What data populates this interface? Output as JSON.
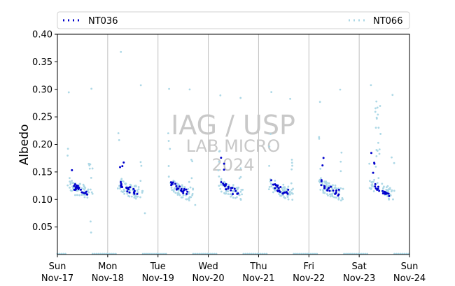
{
  "chart_data": {
    "type": "scatter",
    "ylabel": "Albedo",
    "ylim": [
      0.0,
      0.4
    ],
    "yticks": [
      0.05,
      0.1,
      0.15,
      0.2,
      0.25,
      0.3,
      0.35,
      0.4
    ],
    "ytick_labels": [
      "0.05",
      "0.10",
      "0.15",
      "0.20",
      "0.25",
      "0.30",
      "0.35",
      "0.40"
    ],
    "xlim": [
      0,
      7
    ],
    "xticks": [
      {
        "x": 0,
        "day": "Sun",
        "date": "Nov-17"
      },
      {
        "x": 1,
        "day": "Mon",
        "date": "Nov-18"
      },
      {
        "x": 2,
        "day": "Tue",
        "date": "Nov-19"
      },
      {
        "x": 3,
        "day": "Wed",
        "date": "Nov-20"
      },
      {
        "x": 4,
        "day": "Thu",
        "date": "Nov-21"
      },
      {
        "x": 5,
        "day": "Fri",
        "date": "Nov-22"
      },
      {
        "x": 6,
        "day": "Sat",
        "date": "Nov-23"
      },
      {
        "x": 7,
        "day": "Sun",
        "date": "Nov-24"
      }
    ],
    "vertical_grid": true,
    "legend_position": "top, above plot",
    "watermark": [
      "IAG / USP",
      "LAB MICRO",
      "2024"
    ],
    "series": [
      {
        "name": "NT036",
        "color": "#0000cc",
        "style": "dotted",
        "profile": [
          [
            0.25,
            0.13
          ],
          [
            0.3,
            0.125
          ],
          [
            0.4,
            0.12
          ],
          [
            0.5,
            0.115
          ],
          [
            0.6,
            0.112
          ]
        ]
      },
      {
        "name": "NT066",
        "color": "#add8e6",
        "style": "dotted",
        "profile": [
          [
            0.22,
            0.13
          ],
          [
            0.3,
            0.123
          ],
          [
            0.4,
            0.118
          ],
          [
            0.5,
            0.115
          ],
          [
            0.68,
            0.108
          ]
        ]
      }
    ],
    "night_baseline_value": 0.0
  }
}
